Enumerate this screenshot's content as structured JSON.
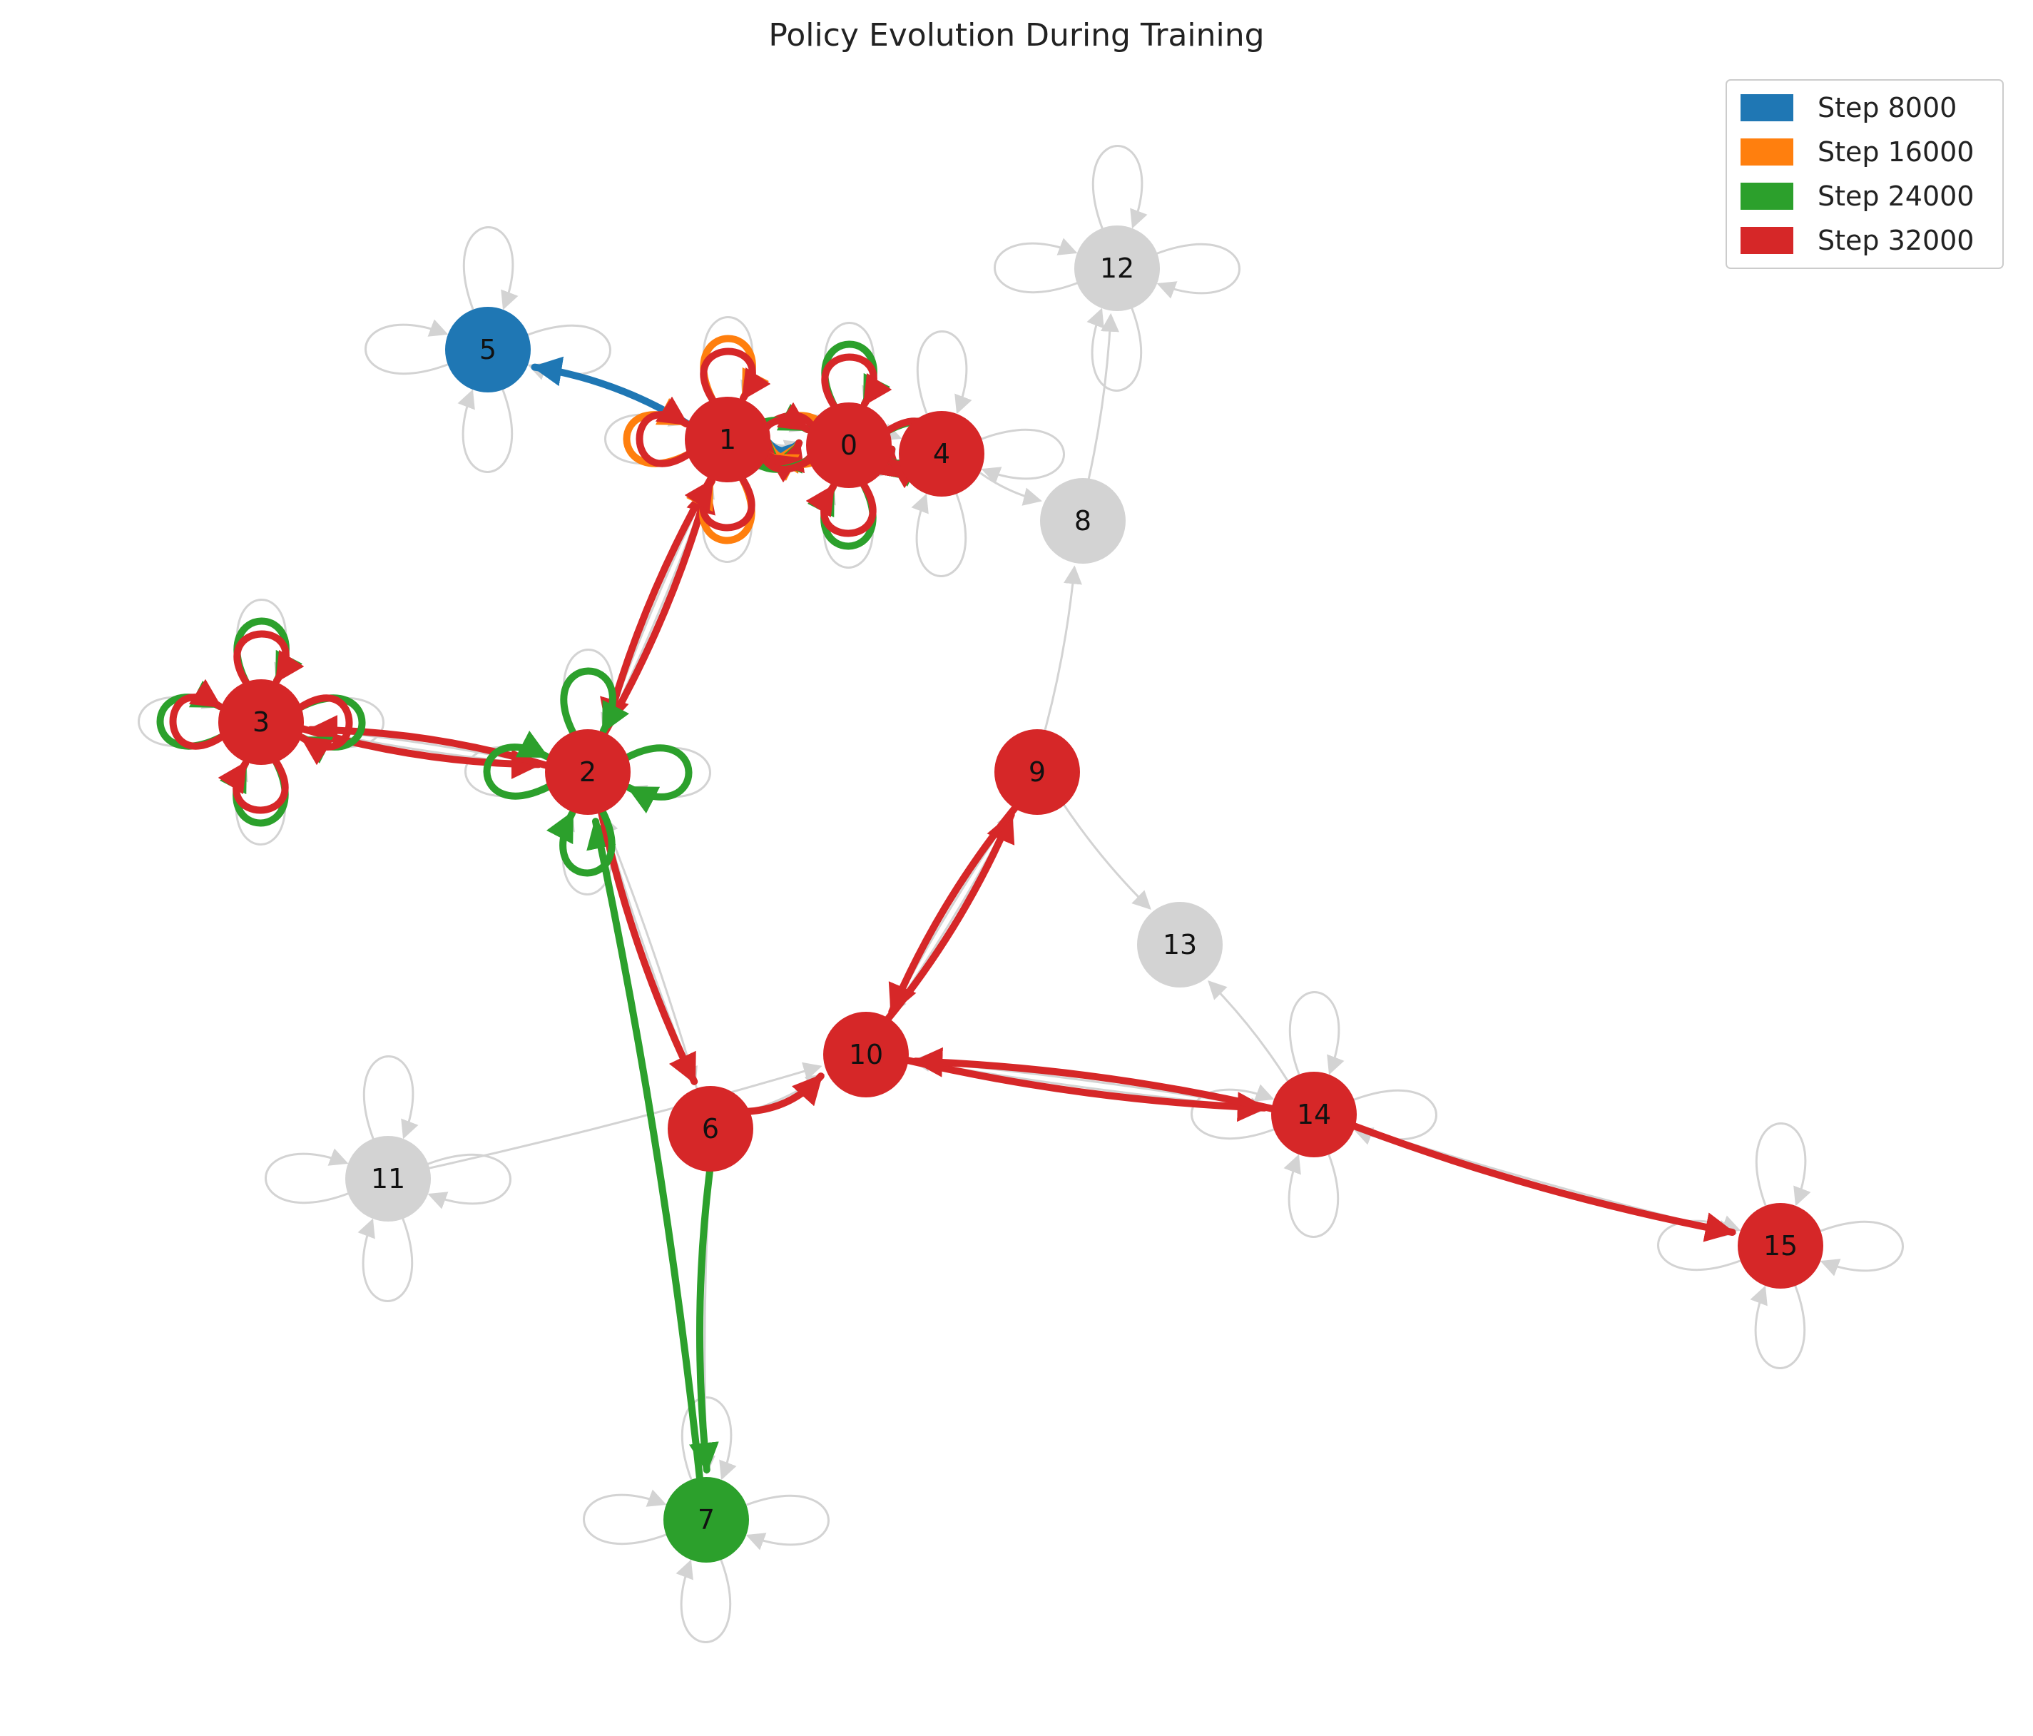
{
  "title": "Policy Evolution During Training",
  "colors": {
    "inactive": "#d3d3d3",
    "step_8000": "#1f77b4",
    "step_16000": "#ff7f0e",
    "step_24000": "#2ca02c",
    "step_32000": "#d62728"
  },
  "legend": [
    {
      "label": "Step 8000",
      "color": "#1f77b4"
    },
    {
      "label": "Step 16000",
      "color": "#ff7f0e"
    },
    {
      "label": "Step 24000",
      "color": "#2ca02c"
    },
    {
      "label": "Step 32000",
      "color": "#d62728"
    }
  ],
  "nodes": [
    {
      "id": "0",
      "status": "step_32000"
    },
    {
      "id": "1",
      "status": "step_32000"
    },
    {
      "id": "2",
      "status": "step_32000"
    },
    {
      "id": "3",
      "status": "step_32000"
    },
    {
      "id": "4",
      "status": "step_32000"
    },
    {
      "id": "5",
      "status": "step_8000"
    },
    {
      "id": "6",
      "status": "step_32000"
    },
    {
      "id": "7",
      "status": "step_24000"
    },
    {
      "id": "8",
      "status": "inactive"
    },
    {
      "id": "9",
      "status": "step_32000"
    },
    {
      "id": "10",
      "status": "step_32000"
    },
    {
      "id": "11",
      "status": "inactive"
    },
    {
      "id": "12",
      "status": "inactive"
    },
    {
      "id": "13",
      "status": "inactive"
    },
    {
      "id": "14",
      "status": "step_32000"
    },
    {
      "id": "15",
      "status": "step_32000"
    }
  ],
  "background_edges": [
    [
      "1",
      "0"
    ],
    [
      "0",
      "4"
    ],
    [
      "4",
      "8"
    ],
    [
      "8",
      "12"
    ],
    [
      "9",
      "8"
    ],
    [
      "9",
      "13"
    ],
    [
      "14",
      "13"
    ],
    [
      "1",
      "2"
    ],
    [
      "2",
      "1"
    ],
    [
      "3",
      "2"
    ],
    [
      "2",
      "3"
    ],
    [
      "2",
      "6"
    ],
    [
      "6",
      "2"
    ],
    [
      "6",
      "7"
    ],
    [
      "6",
      "10"
    ],
    [
      "11",
      "10"
    ],
    [
      "10",
      "9"
    ],
    [
      "9",
      "10"
    ],
    [
      "10",
      "14"
    ],
    [
      "14",
      "10"
    ],
    [
      "14",
      "15"
    ]
  ],
  "background_self_loops": [
    "5",
    "12",
    "11",
    "15",
    "7",
    "14",
    "2",
    "3",
    "1",
    "0",
    "4"
  ],
  "policy_edges": [
    {
      "from": "1",
      "to": "5",
      "step": "step_8000"
    },
    {
      "from": "1",
      "to": "0",
      "step": "step_8000"
    },
    {
      "from": "1",
      "to": "0",
      "step": "step_16000"
    },
    {
      "from": "0",
      "to": "4",
      "step": "step_24000"
    },
    {
      "from": "1",
      "to": "0",
      "step": "step_24000"
    },
    {
      "from": "6",
      "to": "7",
      "step": "step_24000"
    },
    {
      "from": "7",
      "to": "2",
      "step": "step_24000"
    },
    {
      "from": "1",
      "to": "0",
      "step": "step_32000"
    },
    {
      "from": "0",
      "to": "4",
      "step": "step_32000"
    },
    {
      "from": "1",
      "to": "2",
      "step": "step_32000"
    },
    {
      "from": "2",
      "to": "1",
      "step": "step_32000"
    },
    {
      "from": "3",
      "to": "2",
      "step": "step_32000"
    },
    {
      "from": "2",
      "to": "3",
      "step": "step_32000"
    },
    {
      "from": "2",
      "to": "6",
      "step": "step_32000"
    },
    {
      "from": "6",
      "to": "10",
      "step": "step_32000"
    },
    {
      "from": "10",
      "to": "9",
      "step": "step_32000"
    },
    {
      "from": "9",
      "to": "10",
      "step": "step_32000"
    },
    {
      "from": "10",
      "to": "14",
      "step": "step_32000"
    },
    {
      "from": "14",
      "to": "10",
      "step": "step_32000"
    },
    {
      "from": "14",
      "to": "15",
      "step": "step_32000"
    }
  ],
  "policy_self_loops": [
    {
      "node": "1",
      "step": "step_16000"
    },
    {
      "node": "1",
      "step": "step_32000"
    },
    {
      "node": "0",
      "step": "step_24000"
    },
    {
      "node": "0",
      "step": "step_32000"
    },
    {
      "node": "2",
      "step": "step_24000"
    },
    {
      "node": "3",
      "step": "step_24000"
    },
    {
      "node": "3",
      "step": "step_32000"
    }
  ]
}
